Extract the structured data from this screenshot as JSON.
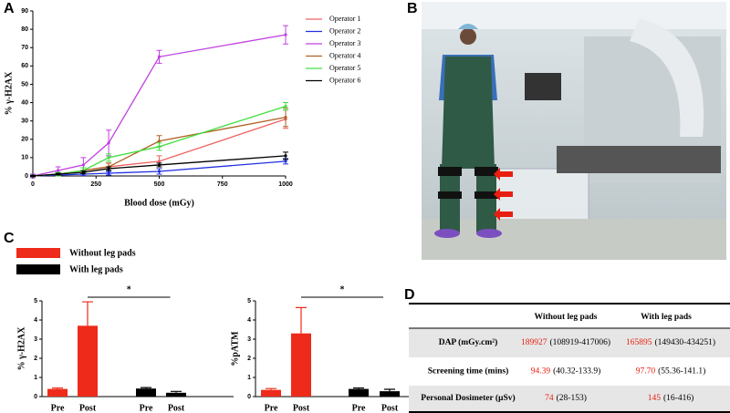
{
  "panel_labels": [
    "A",
    "B",
    "C",
    "D"
  ],
  "chart_data": [
    {
      "type": "line",
      "xlabel": "Blood dose (mGy)",
      "ylabel": "% γ-H2AX",
      "x": [
        0,
        100,
        200,
        300,
        500,
        1000
      ],
      "xlim": [
        0,
        1000
      ],
      "xticks": [
        0,
        250,
        500,
        750,
        1000
      ],
      "ylim": [
        0,
        90
      ],
      "yticks": [
        0,
        10,
        20,
        30,
        40,
        50,
        60,
        70,
        80,
        90
      ],
      "legend": "right",
      "series": [
        {
          "name": "Operator 1",
          "color": "#f06060",
          "values": [
            0,
            1,
            3,
            5,
            8,
            31
          ],
          "errors": [
            0.5,
            1,
            1.5,
            2,
            3,
            5
          ]
        },
        {
          "name": "Operator 2",
          "color": "#2030e0",
          "values": [
            0,
            0.5,
            1,
            1.5,
            2.5,
            8
          ],
          "errors": [
            0.3,
            0.5,
            0.8,
            1,
            1.5,
            1.5
          ]
        },
        {
          "name": "Operator 3",
          "color": "#c040e0",
          "values": [
            0,
            3,
            6,
            18,
            65,
            77
          ],
          "errors": [
            1,
            2,
            4,
            7,
            3.5,
            5
          ]
        },
        {
          "name": "Operator 4",
          "color": "#b06020",
          "values": [
            0,
            1,
            3,
            5,
            19,
            32
          ],
          "errors": [
            0.5,
            1,
            1.5,
            2,
            3,
            5
          ]
        },
        {
          "name": "Operator 5",
          "color": "#40e040",
          "values": [
            0,
            1,
            3,
            10,
            16,
            38
          ],
          "errors": [
            0.5,
            1,
            1.5,
            2,
            2,
            2
          ]
        },
        {
          "name": "Operator 6",
          "color": "#000000",
          "values": [
            0,
            1,
            2,
            4,
            6,
            11
          ],
          "errors": [
            0.3,
            0.5,
            0.8,
            1,
            1,
            2
          ]
        }
      ]
    },
    {
      "type": "bar",
      "ylabel": "% γ-H2AX",
      "categories": [
        "Pre",
        "Post",
        "Pre",
        "Post"
      ],
      "values": [
        0.4,
        3.7,
        0.42,
        0.2
      ],
      "errors": [
        0.05,
        1.25,
        0.05,
        0.07
      ],
      "bar_colors": [
        "#ee2a1a",
        "#ee2a1a",
        "#000000",
        "#000000"
      ],
      "ylim": [
        0,
        5
      ],
      "yticks": [
        0,
        1,
        2,
        3,
        4,
        5
      ],
      "annotation": "*",
      "legend": [
        {
          "name": "Without leg pads",
          "color": "#ee2a1a"
        },
        {
          "name": "With leg pads",
          "color": "#000000"
        }
      ]
    },
    {
      "type": "bar",
      "ylabel": "%pATM",
      "categories": [
        "Pre",
        "Post",
        "Pre",
        "Post"
      ],
      "values": [
        0.35,
        3.3,
        0.4,
        0.28
      ],
      "errors": [
        0.07,
        1.35,
        0.05,
        0.1
      ],
      "bar_colors": [
        "#ee2a1a",
        "#ee2a1a",
        "#000000",
        "#000000"
      ],
      "ylim": [
        0,
        5
      ],
      "yticks": [
        0,
        1,
        2,
        3,
        4,
        5
      ],
      "annotation": "*"
    }
  ],
  "table": {
    "header": [
      "Without leg pads",
      "With leg pads"
    ],
    "rows": [
      {
        "label": "DAP (mGy.cm²)",
        "cells": [
          {
            "value": "189927",
            "range": "(108919-417006)"
          },
          {
            "value": "165895",
            "range": "(149430-434251)"
          }
        ]
      },
      {
        "label": "Screening time (mins)",
        "cells": [
          {
            "value": "94.39",
            "range": "(40.32-133.9)"
          },
          {
            "value": "97.70",
            "range": "(55.36-141.1)"
          }
        ]
      },
      {
        "label": "Personal Dosimeter (µSv)",
        "cells": [
          {
            "value": "74",
            "range": "(28-153)"
          },
          {
            "value": "145",
            "range": "(16-416)"
          }
        ]
      }
    ]
  }
}
